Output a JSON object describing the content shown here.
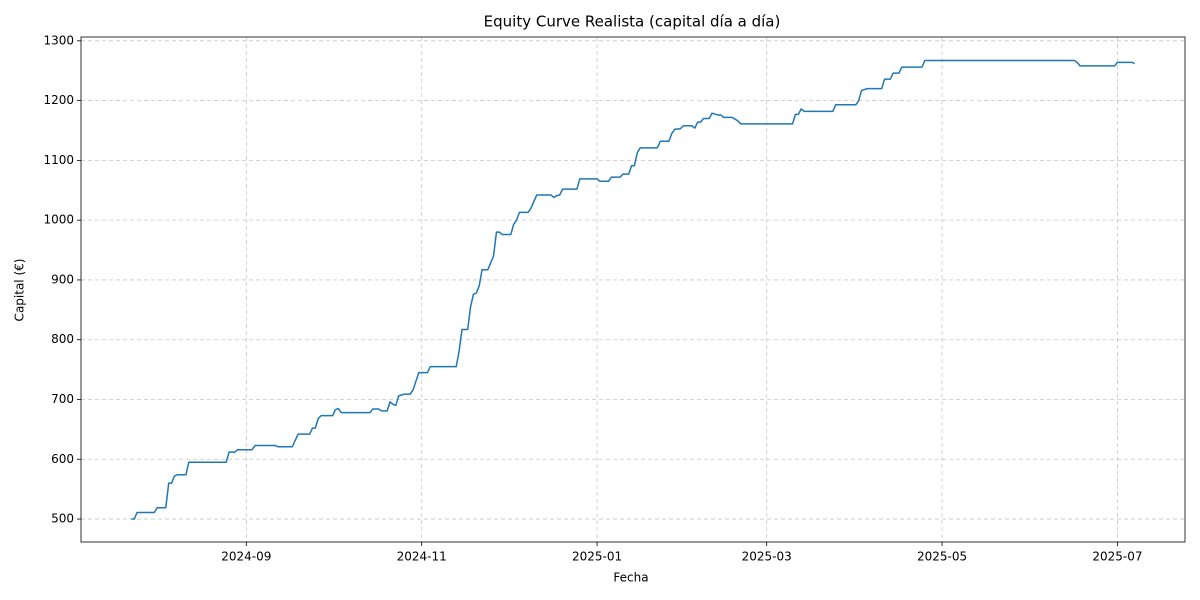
{
  "chart_data": {
    "type": "line",
    "title": "Equity Curve Realista (capital día a día)",
    "xlabel": "Fecha",
    "ylabel": "Capital (€)",
    "color": "#1f77b4",
    "grid": true,
    "x": [
      19927,
      19928,
      19929,
      19935,
      19936,
      19939,
      19940,
      19941,
      19942,
      19943,
      19946,
      19947,
      19960,
      19961,
      19963,
      19964,
      19969,
      19970,
      19977,
      19978,
      19983,
      19985,
      19989,
      19990,
      19991,
      19992,
      19993,
      19997,
      19998,
      19999,
      20000,
      20010,
      20011,
      20013,
      20014,
      20016,
      20017,
      20018,
      20019,
      20020,
      20022,
      20024,
      20025,
      20027,
      20030,
      20031,
      20040,
      20041,
      20042,
      20044,
      20045,
      20046,
      20047,
      20048,
      20049,
      20051,
      20053,
      20054,
      20055,
      20056,
      20059,
      20060,
      20061,
      20062,
      20065,
      20066,
      20068,
      20073,
      20074,
      20075,
      20076,
      20077,
      20082,
      20083,
      20089,
      20090,
      20093,
      20094,
      20097,
      20098,
      20100,
      20101,
      20102,
      20103,
      20104,
      20110,
      20111,
      20114,
      20115,
      20116,
      20118,
      20119,
      20122,
      20123,
      20124,
      20125,
      20126,
      20128,
      20129,
      20131,
      20132,
      20133,
      20136,
      20138,
      20139,
      20157,
      20158,
      20159,
      20160,
      20161,
      20171,
      20172,
      20179,
      20180,
      20181,
      20183,
      20188,
      20189,
      20191,
      20192,
      20194,
      20195,
      20202,
      20203,
      20255,
      20256,
      20257,
      20269,
      20270,
      20275,
      20276
    ],
    "values": [
      500,
      500,
      511,
      511,
      519,
      519,
      560,
      560,
      572,
      574,
      574,
      595,
      595,
      612,
      612,
      616,
      616,
      623,
      623,
      621,
      621,
      642,
      642,
      652,
      652,
      668,
      673,
      673,
      683,
      685,
      678,
      678,
      684,
      684,
      681,
      681,
      696,
      692,
      690,
      706,
      709,
      709,
      716,
      745,
      745,
      755,
      755,
      780,
      817,
      817,
      855,
      876,
      878,
      890,
      917,
      917,
      940,
      980,
      980,
      976,
      976,
      993,
      1000,
      1013,
      1013,
      1020,
      1042,
      1042,
      1038,
      1041,
      1042,
      1052,
      1052,
      1069,
      1069,
      1065,
      1065,
      1072,
      1072,
      1077,
      1077,
      1091,
      1091,
      1113,
      1121,
      1121,
      1132,
      1132,
      1145,
      1152,
      1153,
      1158,
      1158,
      1154,
      1164,
      1164,
      1170,
      1170,
      1179,
      1176,
      1176,
      1172,
      1172,
      1166,
      1161,
      1161,
      1177,
      1177,
      1186,
      1182,
      1182,
      1193,
      1193,
      1200,
      1217,
      1220,
      1220,
      1236,
      1236,
      1246,
      1246,
      1256,
      1256,
      1267,
      1267,
      1264,
      1258,
      1258,
      1264,
      1264,
      1262
    ],
    "xlim": [
      19909.5,
      20293.5
    ],
    "xticks": [
      {
        "value": 19967,
        "label": "2024-09"
      },
      {
        "value": 20028,
        "label": "2024-11"
      },
      {
        "value": 20089,
        "label": "2025-01"
      },
      {
        "value": 20148,
        "label": "2025-03"
      },
      {
        "value": 20209,
        "label": "2025-05"
      },
      {
        "value": 20270,
        "label": "2025-07"
      }
    ],
    "ylim": [
      461.6,
      1306.4
    ],
    "yticks": [
      500,
      600,
      700,
      800,
      900,
      1000,
      1100,
      1200,
      1300
    ]
  }
}
